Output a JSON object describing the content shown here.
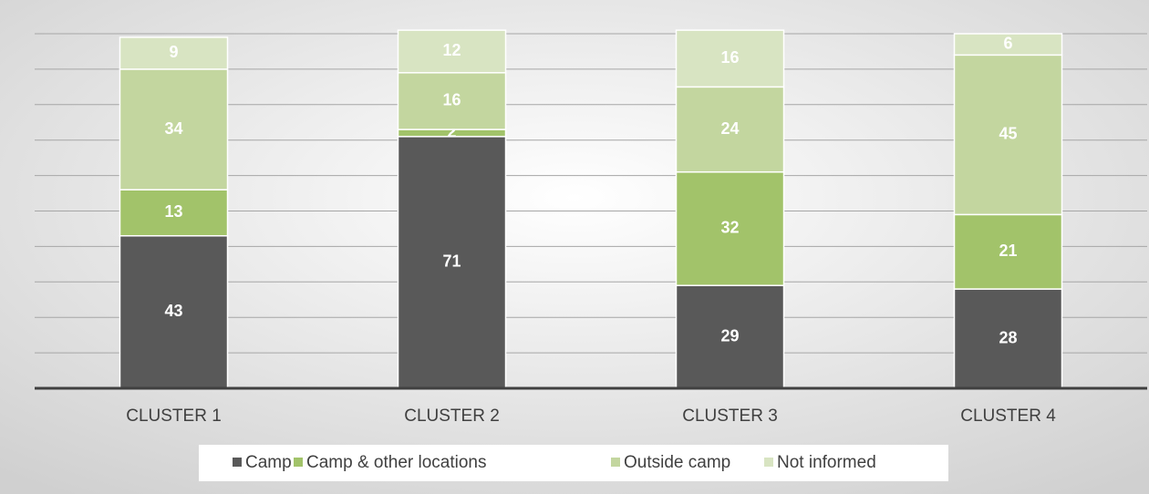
{
  "chart_data": {
    "type": "stacked_bar",
    "categories": [
      "CLUSTER 1",
      "CLUSTER 2",
      "CLUSTER 3",
      "CLUSTER 4"
    ],
    "series": [
      {
        "name": "Camp",
        "color": "#595959",
        "values": [
          43,
          71,
          29,
          28
        ]
      },
      {
        "name": "Camp & other locations",
        "color": "#a2c36a",
        "values": [
          13,
          2,
          32,
          21
        ]
      },
      {
        "name": "Outside camp",
        "color": "#c3d69f",
        "values": [
          34,
          16,
          24,
          45
        ]
      },
      {
        "name": "Not informed",
        "color": "#d8e4c2",
        "values": [
          9,
          12,
          16,
          6
        ]
      }
    ],
    "ylim": [
      0,
      100
    ],
    "yticks": [
      0,
      10,
      20,
      30,
      40,
      50,
      60,
      70,
      80,
      90,
      100
    ],
    "grid": true,
    "legend": "bottom"
  }
}
